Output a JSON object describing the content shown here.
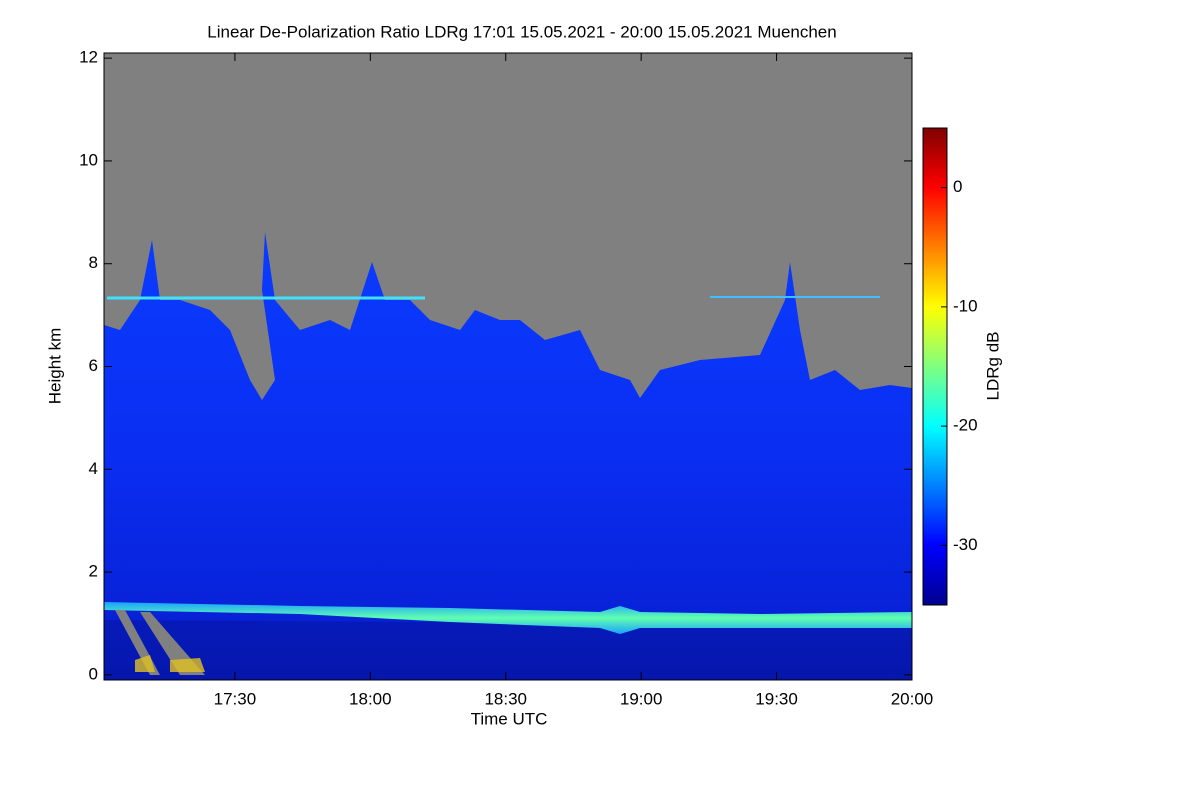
{
  "chart_data": {
    "type": "heatmap",
    "title": "Linear De-Polarization Ratio LDRg   17:01 15.05.2021 - 20:00 15.05.2021 Muenchen",
    "x_label": "Time UTC",
    "y_label": "Height km",
    "xlim": [
      "17:01",
      "20:00"
    ],
    "xticks": [
      "17:30",
      "18:00",
      "18:30",
      "19:00",
      "19:30",
      "20:00"
    ],
    "ylim": [
      -0.1,
      12.1
    ],
    "yticks": [
      0,
      2,
      4,
      6,
      8,
      10,
      12
    ],
    "colorbar": {
      "label": "LDRg dB",
      "lim": [
        -35,
        5
      ],
      "ticks": [
        -30,
        -20,
        -10,
        0
      ],
      "colormap": [
        "#00008f",
        "#0000ff",
        "#0080ff",
        "#00ffff",
        "#80ff80",
        "#ffff00",
        "#ff8000",
        "#ff0000",
        "#800000"
      ]
    }
  }
}
